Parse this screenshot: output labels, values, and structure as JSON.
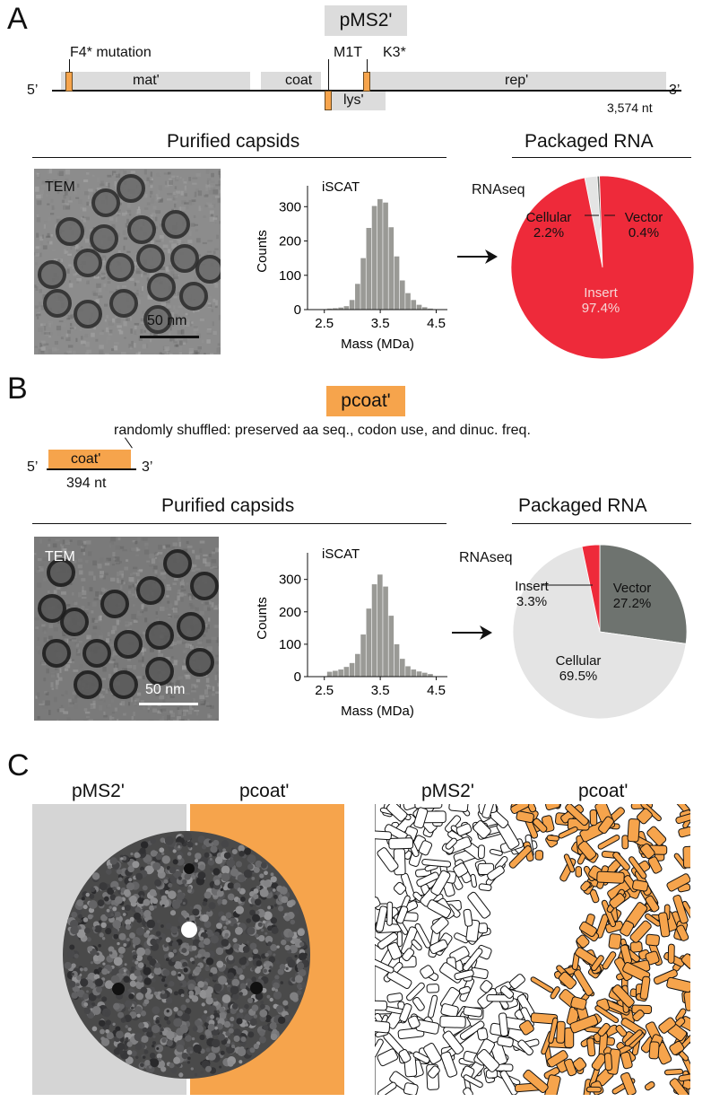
{
  "panels": {
    "a": {
      "letter": "A",
      "title": "pMS2'",
      "genome": {
        "five_prime": "5’",
        "three_prime": "3’",
        "length": "3,574 nt",
        "genes": {
          "mat": "mat'",
          "coat": "coat",
          "lys": "lys'",
          "rep": "rep'"
        },
        "mutations": {
          "f4": "F4* mutation",
          "m1t": "M1T",
          "k3": "K3*"
        }
      },
      "purified_heading": "Purified capsids",
      "packaged_heading": "Packaged RNA",
      "tem_label": "TEM",
      "scale_label": "50 nm",
      "rnaseq_label": "RNAseq"
    },
    "b": {
      "letter": "B",
      "title": "pcoat'",
      "note": "randomly shuffled: preserved aa seq., codon use, and dinuc. freq.",
      "genome": {
        "five_prime": "5’",
        "three_prime": "3’",
        "gene": "coat'",
        "length": "394 nt"
      },
      "purified_heading": "Purified capsids",
      "packaged_heading": "Packaged RNA",
      "tem_label": "TEM",
      "scale_label": "50 nm",
      "rnaseq_label": "RNAseq"
    },
    "c": {
      "letter": "C",
      "left_labels": [
        "pMS2'",
        "pcoat'"
      ],
      "right_labels": [
        "pMS2'",
        "pcoat'"
      ]
    }
  },
  "colors": {
    "orange": "#f6a44c",
    "gray_bar": "#dcdcdc",
    "red": "#ee2a3a",
    "dark_gray": "#6e736f",
    "light_gray": "#e4e4e4"
  },
  "chart_data": [
    {
      "type": "bar",
      "id": "iscat-a",
      "title": "iSCAT",
      "xlabel": "Mass (MDa)",
      "ylabel": "Counts",
      "xticks": [
        "2.5",
        "3.5",
        "4.5"
      ],
      "yticks": [
        "0",
        "100",
        "200",
        "300"
      ],
      "xlim": [
        2.2,
        4.7
      ],
      "ylim": [
        0,
        340
      ],
      "bin_start": 2.55,
      "bin_width": 0.1,
      "values": [
        3,
        4,
        6,
        10,
        28,
        75,
        150,
        238,
        302,
        322,
        312,
        240,
        155,
        85,
        48,
        28,
        14,
        7,
        3
      ]
    },
    {
      "type": "pie",
      "id": "pie-a",
      "slices": [
        {
          "label": "Insert",
          "value": 97.4,
          "text": "97.4%",
          "color": "#ee2a3a"
        },
        {
          "label": "Cellular",
          "value": 2.2,
          "text": "2.2%",
          "color": "#e4e4e4"
        },
        {
          "label": "Vector",
          "value": 0.4,
          "text": "0.4%",
          "color": "#6e736f"
        }
      ]
    },
    {
      "type": "bar",
      "id": "iscat-b",
      "title": "iSCAT",
      "xlabel": "Mass (MDa)",
      "ylabel": "Counts",
      "xticks": [
        "2.5",
        "3.5",
        "4.5"
      ],
      "yticks": [
        "0",
        "100",
        "200",
        "300"
      ],
      "xlim": [
        2.2,
        4.7
      ],
      "ylim": [
        0,
        360
      ],
      "bin_start": 2.55,
      "bin_width": 0.1,
      "values": [
        15,
        18,
        22,
        30,
        42,
        70,
        130,
        210,
        285,
        315,
        278,
        188,
        100,
        55,
        32,
        22,
        16,
        12,
        8
      ]
    },
    {
      "type": "pie",
      "id": "pie-b",
      "slices": [
        {
          "label": "Vector",
          "value": 27.2,
          "text": "27.2%",
          "color": "#6e736f"
        },
        {
          "label": "Cellular",
          "value": 69.5,
          "text": "69.5%",
          "color": "#e4e4e4"
        },
        {
          "label": "Insert",
          "value": 3.3,
          "text": "3.3%",
          "color": "#ee2a3a"
        }
      ]
    }
  ]
}
